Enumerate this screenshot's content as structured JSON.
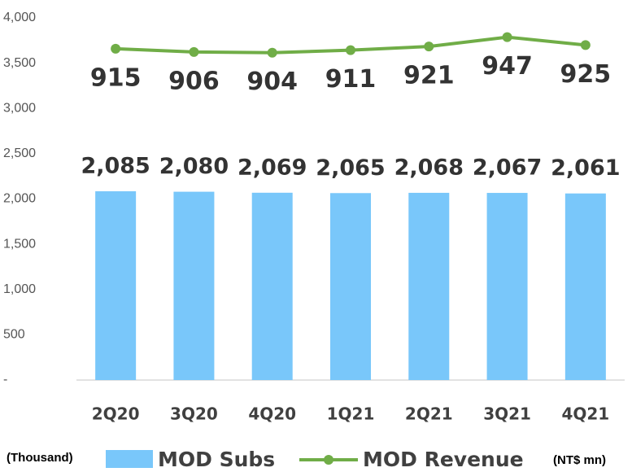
{
  "chart_data": {
    "type": "bar_line",
    "categories": [
      "2Q20",
      "3Q20",
      "4Q20",
      "1Q21",
      "2Q21",
      "3Q21",
      "4Q21"
    ],
    "series": [
      {
        "name": "MOD Subs",
        "type": "bar",
        "color": "#79c7fa",
        "axis": "y",
        "values": [
          2085,
          2080,
          2069,
          2065,
          2068,
          2067,
          2061
        ],
        "value_labels": [
          "2,085",
          "2,080",
          "2,069",
          "2,065",
          "2,068",
          "2,067",
          "2,061"
        ]
      },
      {
        "name": "MOD Revenue",
        "type": "line",
        "color": "#70ad47",
        "axis": "y2",
        "values": [
          915,
          906,
          904,
          911,
          921,
          947,
          925
        ]
      }
    ],
    "y_unit_label": "(Thousand)",
    "y2_unit_label": "(NT$ mn)",
    "ylim": [
      0,
      4000
    ],
    "yticks": [
      {
        "value": 0,
        "label": "-"
      },
      {
        "value": 500,
        "label": "500"
      },
      {
        "value": 1000,
        "label": "1,000"
      },
      {
        "value": 1500,
        "label": "1,500"
      },
      {
        "value": 2000,
        "label": "2,000"
      },
      {
        "value": 2500,
        "label": "2,500"
      },
      {
        "value": 3000,
        "label": "3,000"
      },
      {
        "value": 3500,
        "label": "3,500"
      },
      {
        "value": 4000,
        "label": "4,000"
      }
    ],
    "y2lim": [
      0,
      1000
    ],
    "grid": false
  }
}
